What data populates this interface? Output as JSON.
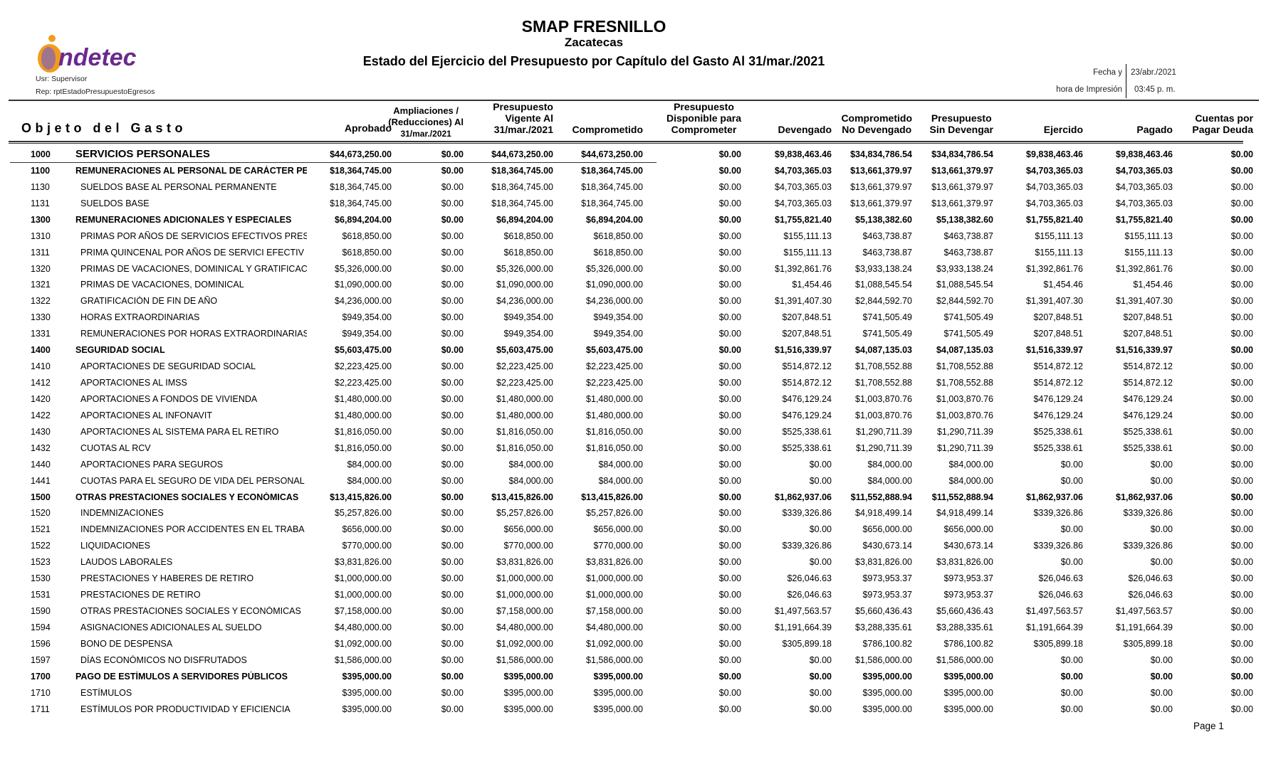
{
  "header": {
    "title": "SMAP FRESNILLO",
    "state": "Zacatecas",
    "subtitle": "Estado del Ejercicio del Presupuesto por Capítulo del Gasto Al 31/mar./2021",
    "logo_text": "indetec",
    "user": "Usr: Supervisor",
    "report": "Rep: rptEstadoPresupuestoEgresos",
    "fecha_label": "Fecha y",
    "hora_label": "hora de Impresión",
    "fecha_value": "23/abr./2021",
    "hora_value": "03:45 p. m."
  },
  "columns": {
    "objeto": "Objeto del Gasto",
    "aprobado": "Aprobado",
    "ampliaciones": [
      "Ampliaciones /",
      "(Reducciones) Al",
      "31/mar./2021"
    ],
    "vigente": [
      "Presupuesto",
      "Vigente Al",
      "31/mar./2021"
    ],
    "comprometido": "Comprometido",
    "disponible": [
      "Presupuesto",
      "Disponible para",
      "Comprometer"
    ],
    "devengado": "Devengado",
    "comp_no_dev": [
      "Comprometido",
      "No Devengado"
    ],
    "sin_devengar": [
      "Presupuesto",
      "Sin Devengar"
    ],
    "ejercido": "Ejercido",
    "pagado": "Pagado",
    "cuentas": [
      "Cuentas por",
      "Pagar Deuda"
    ]
  },
  "rows": [
    {
      "code": "1000",
      "name": "SERVICIOS PERSONALES",
      "level": "chapter",
      "v": [
        "$44,673,250.00",
        "$0.00",
        "$44,673,250.00",
        "$44,673,250.00",
        "$0.00",
        "$9,838,463.46",
        "$34,834,786.54",
        "$34,834,786.54",
        "$9,838,463.46",
        "$9,838,463.46",
        "$0.00"
      ]
    },
    {
      "code": "1100",
      "name": "REMUNERACIONES AL PERSONAL DE CARÁCTER PE",
      "level": "concept",
      "v": [
        "$18,364,745.00",
        "$0.00",
        "$18,364,745.00",
        "$18,364,745.00",
        "$0.00",
        "$4,703,365.03",
        "$13,661,379.97",
        "$13,661,379.97",
        "$4,703,365.03",
        "$4,703,365.03",
        "$0.00"
      ]
    },
    {
      "code": "1130",
      "name": "SUELDOS BASE AL PERSONAL PERMANENTE",
      "level": "item",
      "v": [
        "$18,364,745.00",
        "$0.00",
        "$18,364,745.00",
        "$18,364,745.00",
        "$0.00",
        "$4,703,365.03",
        "$13,661,379.97",
        "$13,661,379.97",
        "$4,703,365.03",
        "$4,703,365.03",
        "$0.00"
      ]
    },
    {
      "code": "1131",
      "name": "SUELDOS BASE",
      "level": "item",
      "v": [
        "$18,364,745.00",
        "$0.00",
        "$18,364,745.00",
        "$18,364,745.00",
        "$0.00",
        "$4,703,365.03",
        "$13,661,379.97",
        "$13,661,379.97",
        "$4,703,365.03",
        "$4,703,365.03",
        "$0.00"
      ]
    },
    {
      "code": "1300",
      "name": "REMUNERACIONES ADICIONALES Y ESPECIALES",
      "level": "concept",
      "v": [
        "$6,894,204.00",
        "$0.00",
        "$6,894,204.00",
        "$6,894,204.00",
        "$0.00",
        "$1,755,821.40",
        "$5,138,382.60",
        "$5,138,382.60",
        "$1,755,821.40",
        "$1,755,821.40",
        "$0.00"
      ]
    },
    {
      "code": "1310",
      "name": "PRIMAS POR AÑOS DE SERVICIOS EFECTIVOS PRES",
      "level": "item",
      "v": [
        "$618,850.00",
        "$0.00",
        "$618,850.00",
        "$618,850.00",
        "$0.00",
        "$155,111.13",
        "$463,738.87",
        "$463,738.87",
        "$155,111.13",
        "$155,111.13",
        "$0.00"
      ]
    },
    {
      "code": "1311",
      "name": "PRIMA QUINCENAL POR AÑOS DE SERVICI EFECTIV",
      "level": "item",
      "v": [
        "$618,850.00",
        "$0.00",
        "$618,850.00",
        "$618,850.00",
        "$0.00",
        "$155,111.13",
        "$463,738.87",
        "$463,738.87",
        "$155,111.13",
        "$155,111.13",
        "$0.00"
      ]
    },
    {
      "code": "1320",
      "name": "PRIMAS DE VACACIONES, DOMINICAL Y GRATIFICAC",
      "level": "item",
      "v": [
        "$5,326,000.00",
        "$0.00",
        "$5,326,000.00",
        "$5,326,000.00",
        "$0.00",
        "$1,392,861.76",
        "$3,933,138.24",
        "$3,933,138.24",
        "$1,392,861.76",
        "$1,392,861.76",
        "$0.00"
      ]
    },
    {
      "code": "1321",
      "name": "PRIMAS DE VACACIONES, DOMINICAL",
      "level": "item",
      "v": [
        "$1,090,000.00",
        "$0.00",
        "$1,090,000.00",
        "$1,090,000.00",
        "$0.00",
        "$1,454.46",
        "$1,088,545.54",
        "$1,088,545.54",
        "$1,454.46",
        "$1,454.46",
        "$0.00"
      ]
    },
    {
      "code": "1322",
      "name": "GRATIFICACIÓN DE FIN DE AÑO",
      "level": "item",
      "v": [
        "$4,236,000.00",
        "$0.00",
        "$4,236,000.00",
        "$4,236,000.00",
        "$0.00",
        "$1,391,407.30",
        "$2,844,592.70",
        "$2,844,592.70",
        "$1,391,407.30",
        "$1,391,407.30",
        "$0.00"
      ]
    },
    {
      "code": "1330",
      "name": "HORAS EXTRAORDINARIAS",
      "level": "item",
      "v": [
        "$949,354.00",
        "$0.00",
        "$949,354.00",
        "$949,354.00",
        "$0.00",
        "$207,848.51",
        "$741,505.49",
        "$741,505.49",
        "$207,848.51",
        "$207,848.51",
        "$0.00"
      ]
    },
    {
      "code": "1331",
      "name": "REMUNERACIONES POR HORAS EXTRAORDINARIAS",
      "level": "item",
      "v": [
        "$949,354.00",
        "$0.00",
        "$949,354.00",
        "$949,354.00",
        "$0.00",
        "$207,848.51",
        "$741,505.49",
        "$741,505.49",
        "$207,848.51",
        "$207,848.51",
        "$0.00"
      ]
    },
    {
      "code": "1400",
      "name": "SEGURIDAD SOCIAL",
      "level": "concept",
      "v": [
        "$5,603,475.00",
        "$0.00",
        "$5,603,475.00",
        "$5,603,475.00",
        "$0.00",
        "$1,516,339.97",
        "$4,087,135.03",
        "$4,087,135.03",
        "$1,516,339.97",
        "$1,516,339.97",
        "$0.00"
      ]
    },
    {
      "code": "1410",
      "name": "APORTACIONES DE SEGURIDAD SOCIAL",
      "level": "item",
      "v": [
        "$2,223,425.00",
        "$0.00",
        "$2,223,425.00",
        "$2,223,425.00",
        "$0.00",
        "$514,872.12",
        "$1,708,552.88",
        "$1,708,552.88",
        "$514,872.12",
        "$514,872.12",
        "$0.00"
      ]
    },
    {
      "code": "1412",
      "name": "APORTACIONES AL IMSS",
      "level": "item",
      "v": [
        "$2,223,425.00",
        "$0.00",
        "$2,223,425.00",
        "$2,223,425.00",
        "$0.00",
        "$514,872.12",
        "$1,708,552.88",
        "$1,708,552.88",
        "$514,872.12",
        "$514,872.12",
        "$0.00"
      ]
    },
    {
      "code": "1420",
      "name": "APORTACIONES A FONDOS DE VIVIENDA",
      "level": "item",
      "v": [
        "$1,480,000.00",
        "$0.00",
        "$1,480,000.00",
        "$1,480,000.00",
        "$0.00",
        "$476,129.24",
        "$1,003,870.76",
        "$1,003,870.76",
        "$476,129.24",
        "$476,129.24",
        "$0.00"
      ]
    },
    {
      "code": "1422",
      "name": "APORTACIONES AL INFONAVIT",
      "level": "item",
      "v": [
        "$1,480,000.00",
        "$0.00",
        "$1,480,000.00",
        "$1,480,000.00",
        "$0.00",
        "$476,129.24",
        "$1,003,870.76",
        "$1,003,870.76",
        "$476,129.24",
        "$476,129.24",
        "$0.00"
      ]
    },
    {
      "code": "1430",
      "name": "APORTACIONES AL SISTEMA PARA EL RETIRO",
      "level": "item",
      "v": [
        "$1,816,050.00",
        "$0.00",
        "$1,816,050.00",
        "$1,816,050.00",
        "$0.00",
        "$525,338.61",
        "$1,290,711.39",
        "$1,290,711.39",
        "$525,338.61",
        "$525,338.61",
        "$0.00"
      ]
    },
    {
      "code": "1432",
      "name": "CUOTAS AL RCV",
      "level": "item",
      "v": [
        "$1,816,050.00",
        "$0.00",
        "$1,816,050.00",
        "$1,816,050.00",
        "$0.00",
        "$525,338.61",
        "$1,290,711.39",
        "$1,290,711.39",
        "$525,338.61",
        "$525,338.61",
        "$0.00"
      ]
    },
    {
      "code": "1440",
      "name": "APORTACIONES PARA SEGUROS",
      "level": "item",
      "v": [
        "$84,000.00",
        "$0.00",
        "$84,000.00",
        "$84,000.00",
        "$0.00",
        "$0.00",
        "$84,000.00",
        "$84,000.00",
        "$0.00",
        "$0.00",
        "$0.00"
      ]
    },
    {
      "code": "1441",
      "name": "CUOTAS PARA EL SEGURO DE VIDA DEL PERSONAL",
      "level": "item",
      "v": [
        "$84,000.00",
        "$0.00",
        "$84,000.00",
        "$84,000.00",
        "$0.00",
        "$0.00",
        "$84,000.00",
        "$84,000.00",
        "$0.00",
        "$0.00",
        "$0.00"
      ]
    },
    {
      "code": "1500",
      "name": "OTRAS PRESTACIONES SOCIALES Y ECONÓMICAS",
      "level": "concept",
      "v": [
        "$13,415,826.00",
        "$0.00",
        "$13,415,826.00",
        "$13,415,826.00",
        "$0.00",
        "$1,862,937.06",
        "$11,552,888.94",
        "$11,552,888.94",
        "$1,862,937.06",
        "$1,862,937.06",
        "$0.00"
      ]
    },
    {
      "code": "1520",
      "name": "INDEMNIZACIONES",
      "level": "item",
      "v": [
        "$5,257,826.00",
        "$0.00",
        "$5,257,826.00",
        "$5,257,826.00",
        "$0.00",
        "$339,326.86",
        "$4,918,499.14",
        "$4,918,499.14",
        "$339,326.86",
        "$339,326.86",
        "$0.00"
      ]
    },
    {
      "code": "1521",
      "name": "INDEMNIZACIONES POR ACCIDENTES EN EL TRABA",
      "level": "item",
      "v": [
        "$656,000.00",
        "$0.00",
        "$656,000.00",
        "$656,000.00",
        "$0.00",
        "$0.00",
        "$656,000.00",
        "$656,000.00",
        "$0.00",
        "$0.00",
        "$0.00"
      ]
    },
    {
      "code": "1522",
      "name": "LIQUIDACIONES",
      "level": "item",
      "v": [
        "$770,000.00",
        "$0.00",
        "$770,000.00",
        "$770,000.00",
        "$0.00",
        "$339,326.86",
        "$430,673.14",
        "$430,673.14",
        "$339,326.86",
        "$339,326.86",
        "$0.00"
      ]
    },
    {
      "code": "1523",
      "name": "LAUDOS LABORALES",
      "level": "item",
      "v": [
        "$3,831,826.00",
        "$0.00",
        "$3,831,826.00",
        "$3,831,826.00",
        "$0.00",
        "$0.00",
        "$3,831,826.00",
        "$3,831,826.00",
        "$0.00",
        "$0.00",
        "$0.00"
      ]
    },
    {
      "code": "1530",
      "name": "PRESTACIONES Y HABERES DE RETIRO",
      "level": "item",
      "v": [
        "$1,000,000.00",
        "$0.00",
        "$1,000,000.00",
        "$1,000,000.00",
        "$0.00",
        "$26,046.63",
        "$973,953.37",
        "$973,953.37",
        "$26,046.63",
        "$26,046.63",
        "$0.00"
      ]
    },
    {
      "code": "1531",
      "name": "PRESTACIONES DE RETIRO",
      "level": "item",
      "v": [
        "$1,000,000.00",
        "$0.00",
        "$1,000,000.00",
        "$1,000,000.00",
        "$0.00",
        "$26,046.63",
        "$973,953.37",
        "$973,953.37",
        "$26,046.63",
        "$26,046.63",
        "$0.00"
      ]
    },
    {
      "code": "1590",
      "name": "OTRAS PRESTACIONES SOCIALES Y ECONÓMICAS",
      "level": "item",
      "v": [
        "$7,158,000.00",
        "$0.00",
        "$7,158,000.00",
        "$7,158,000.00",
        "$0.00",
        "$1,497,563.57",
        "$5,660,436.43",
        "$5,660,436.43",
        "$1,497,563.57",
        "$1,497,563.57",
        "$0.00"
      ]
    },
    {
      "code": "1594",
      "name": "ASIGNACIONES ADICIONALES AL SUELDO",
      "level": "item",
      "v": [
        "$4,480,000.00",
        "$0.00",
        "$4,480,000.00",
        "$4,480,000.00",
        "$0.00",
        "$1,191,664.39",
        "$3,288,335.61",
        "$3,288,335.61",
        "$1,191,664.39",
        "$1,191,664.39",
        "$0.00"
      ]
    },
    {
      "code": "1596",
      "name": "BONO DE DESPENSA",
      "level": "item",
      "v": [
        "$1,092,000.00",
        "$0.00",
        "$1,092,000.00",
        "$1,092,000.00",
        "$0.00",
        "$305,899.18",
        "$786,100.82",
        "$786,100.82",
        "$305,899.18",
        "$305,899.18",
        "$0.00"
      ]
    },
    {
      "code": "1597",
      "name": "DÍAS ECONÓMICOS NO DISFRUTADOS",
      "level": "item",
      "v": [
        "$1,586,000.00",
        "$0.00",
        "$1,586,000.00",
        "$1,586,000.00",
        "$0.00",
        "$0.00",
        "$1,586,000.00",
        "$1,586,000.00",
        "$0.00",
        "$0.00",
        "$0.00"
      ]
    },
    {
      "code": "1700",
      "name": "PAGO DE ESTÍMULOS A SERVIDORES PÚBLICOS",
      "level": "concept",
      "v": [
        "$395,000.00",
        "$0.00",
        "$395,000.00",
        "$395,000.00",
        "$0.00",
        "$0.00",
        "$395,000.00",
        "$395,000.00",
        "$0.00",
        "$0.00",
        "$0.00"
      ]
    },
    {
      "code": "1710",
      "name": "ESTÍMULOS",
      "level": "item",
      "v": [
        "$395,000.00",
        "$0.00",
        "$395,000.00",
        "$395,000.00",
        "$0.00",
        "$0.00",
        "$395,000.00",
        "$395,000.00",
        "$0.00",
        "$0.00",
        "$0.00"
      ]
    },
    {
      "code": "1711",
      "name": "ESTÍMULOS POR PRODUCTIVIDAD Y EFICIENCIA",
      "level": "item",
      "v": [
        "$395,000.00",
        "$0.00",
        "$395,000.00",
        "$395,000.00",
        "$0.00",
        "$0.00",
        "$395,000.00",
        "$395,000.00",
        "$0.00",
        "$0.00",
        "$0.00"
      ]
    }
  ],
  "footer": {
    "page": "Page 1"
  },
  "colors": {
    "logo_purple": "#6a2a8c",
    "logo_orange": "#f39a1e",
    "rule": "#333333"
  }
}
